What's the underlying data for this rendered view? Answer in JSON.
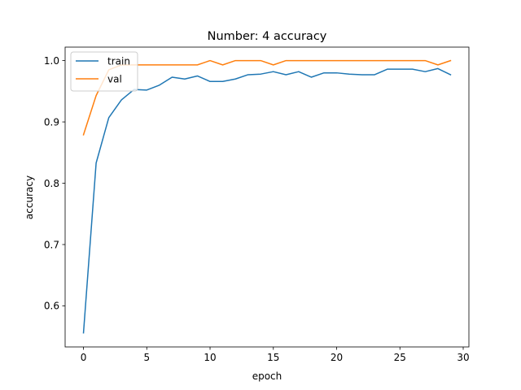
{
  "chart_data": {
    "type": "line",
    "title": "Number: 4 accuracy",
    "xlabel": "epoch",
    "ylabel": "accuracy",
    "xlim": [
      -1.45,
      30.45
    ],
    "ylim": [
      0.533,
      1.022
    ],
    "xticks": [
      0,
      5,
      10,
      15,
      20,
      25,
      30
    ],
    "yticks": [
      0.6,
      0.7,
      0.8,
      0.9,
      1.0
    ],
    "xtick_labels": [
      "0",
      "5",
      "10",
      "15",
      "20",
      "25",
      "30"
    ],
    "ytick_labels": [
      "0.6",
      "0.7",
      "0.8",
      "0.9",
      "1.0"
    ],
    "grid": false,
    "legend_position": "top-left",
    "x": [
      0,
      1,
      2,
      3,
      4,
      5,
      6,
      7,
      8,
      9,
      10,
      11,
      12,
      13,
      14,
      15,
      16,
      17,
      18,
      19,
      20,
      21,
      22,
      23,
      24,
      25,
      26,
      27,
      28,
      29
    ],
    "series": [
      {
        "name": "train",
        "color": "#1f77b4",
        "values": [
          0.556,
          0.833,
          0.907,
          0.936,
          0.953,
          0.952,
          0.96,
          0.973,
          0.97,
          0.975,
          0.966,
          0.966,
          0.97,
          0.977,
          0.978,
          0.982,
          0.977,
          0.982,
          0.973,
          0.98,
          0.98,
          0.978,
          0.977,
          0.977,
          0.986,
          0.986,
          0.986,
          0.982,
          0.987,
          0.977
        ]
      },
      {
        "name": "val",
        "color": "#ff7f0e",
        "values": [
          0.879,
          0.943,
          0.985,
          0.993,
          0.993,
          0.993,
          0.993,
          0.993,
          0.993,
          0.993,
          1.0,
          0.993,
          1.0,
          1.0,
          1.0,
          0.993,
          1.0,
          1.0,
          1.0,
          1.0,
          1.0,
          1.0,
          1.0,
          1.0,
          1.0,
          1.0,
          1.0,
          1.0,
          0.993,
          1.0
        ]
      }
    ]
  }
}
